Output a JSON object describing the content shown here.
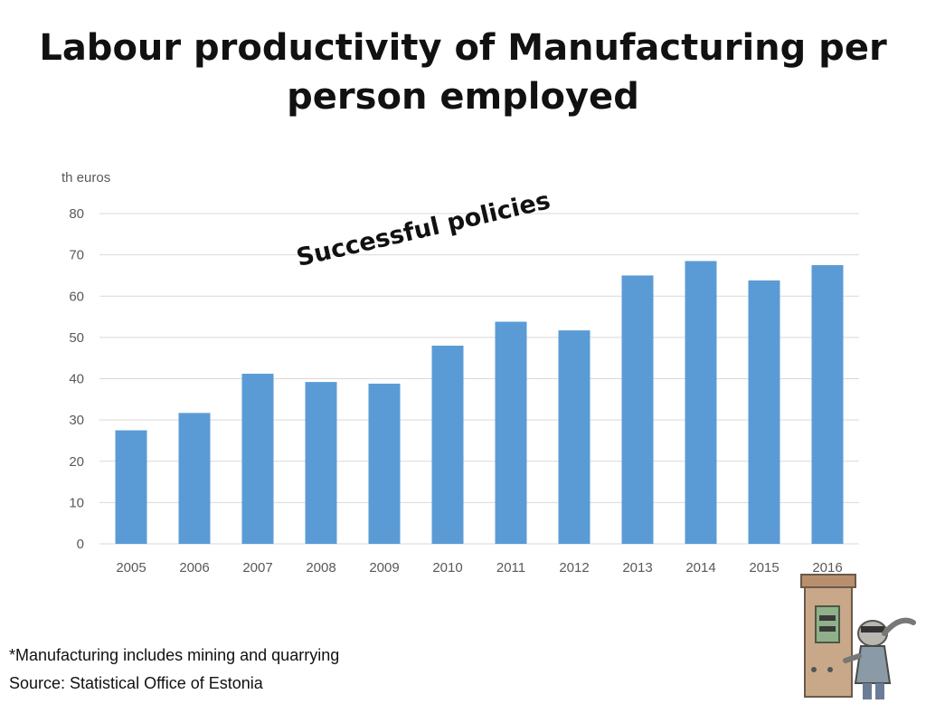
{
  "slide": {
    "title": "Labour productivity of Manufacturing per person employed",
    "annotation": "Successful policies",
    "footnote": "*Manufacturing includes mining and quarrying",
    "source": "Source: Statistical Office of Estonia"
  },
  "chart_data": {
    "type": "bar",
    "ylabel": "th euros",
    "categories": [
      "2005",
      "2006",
      "2007",
      "2008",
      "2009",
      "2010",
      "2011",
      "2012",
      "2013",
      "2014",
      "2015",
      "2016"
    ],
    "values": [
      27.5,
      31.7,
      41.2,
      39.2,
      38.8,
      48.0,
      53.8,
      51.7,
      65.0,
      68.5,
      63.8,
      67.5
    ],
    "ylim": [
      0,
      80
    ],
    "yticks": [
      0,
      10,
      20,
      30,
      40,
      50,
      60,
      70,
      80
    ],
    "grid": true,
    "legend": "none",
    "bar_color": "#5b9bd5",
    "grid_color": "#d9d9d9",
    "tick_color": "#595959"
  }
}
